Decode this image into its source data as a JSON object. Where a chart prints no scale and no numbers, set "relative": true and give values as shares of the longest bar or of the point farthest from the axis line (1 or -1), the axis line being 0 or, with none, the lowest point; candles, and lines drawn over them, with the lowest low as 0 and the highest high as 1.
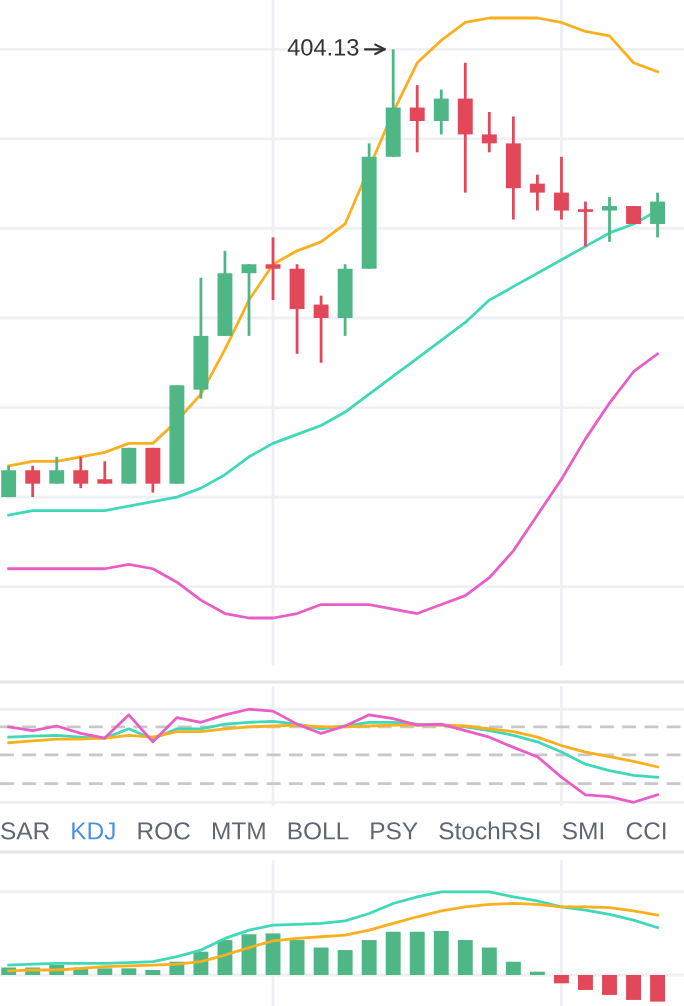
{
  "chart_data": [
    {
      "type": "candlestick",
      "relative": true,
      "grid": true,
      "categories": [
        null,
        null,
        null,
        null,
        null,
        null,
        null,
        null,
        null,
        null,
        null,
        null,
        null,
        null,
        null,
        null,
        null,
        null,
        null,
        null,
        null,
        null,
        null,
        null,
        null,
        null,
        null,
        null
      ],
      "ohlc": [
        [
          0.0,
          0.07,
          0.0,
          0.06
        ],
        [
          0.06,
          0.07,
          0.0,
          0.03
        ],
        [
          0.03,
          0.09,
          0.03,
          0.06
        ],
        [
          0.06,
          0.09,
          0.02,
          0.03
        ],
        [
          0.04,
          0.08,
          0.03,
          0.03
        ],
        [
          0.03,
          0.11,
          0.03,
          0.11
        ],
        [
          0.11,
          0.11,
          0.01,
          0.03
        ],
        [
          0.03,
          0.25,
          0.03,
          0.25
        ],
        [
          0.24,
          0.49,
          0.22,
          0.36
        ],
        [
          0.36,
          0.55,
          0.36,
          0.5
        ],
        [
          0.5,
          0.52,
          0.36,
          0.52
        ],
        [
          0.52,
          0.58,
          0.44,
          0.51
        ],
        [
          0.51,
          0.52,
          0.32,
          0.42
        ],
        [
          0.43,
          0.45,
          0.3,
          0.4
        ],
        [
          0.4,
          0.52,
          0.36,
          0.51
        ],
        [
          0.51,
          0.79,
          0.51,
          0.76
        ],
        [
          0.76,
          1.0,
          0.76,
          0.87
        ],
        [
          0.87,
          0.92,
          0.77,
          0.84
        ],
        [
          0.84,
          0.91,
          0.81,
          0.89
        ],
        [
          0.89,
          0.97,
          0.68,
          0.81
        ],
        [
          0.81,
          0.86,
          0.77,
          0.79
        ],
        [
          0.79,
          0.85,
          0.62,
          0.69
        ],
        [
          0.7,
          0.72,
          0.64,
          0.68
        ],
        [
          0.68,
          0.76,
          0.62,
          0.64
        ],
        [
          0.643,
          0.66,
          0.56,
          0.637
        ],
        [
          0.64,
          0.67,
          0.57,
          0.65
        ],
        [
          0.65,
          0.65,
          0.61,
          0.61
        ],
        [
          0.61,
          0.68,
          0.58,
          0.66
        ]
      ],
      "colors": [
        "#4fb686",
        "#e2485a",
        "#4fb686",
        "#e2485a",
        "#e2485a",
        "#4fb686",
        "#e2485a",
        "#4fb686",
        "#4fb686",
        "#4fb686",
        "#4fb686",
        "#e2485a",
        "#e2485a",
        "#e2485a",
        "#4fb686",
        "#4fb686",
        "#4fb686",
        "#e2485a",
        "#4fb686",
        "#e2485a",
        "#e2485a",
        "#e2485a",
        "#e2485a",
        "#e2485a",
        "#e2485a",
        "#4fb686",
        "#e2485a",
        "#4fb686"
      ],
      "series": [
        {
          "type": "line",
          "color": "#f8b01f",
          "values": [
            0.07,
            0.08,
            0.08,
            0.09,
            0.1,
            0.12,
            0.12,
            0.17,
            0.23,
            0.33,
            0.44,
            0.52,
            0.55,
            0.57,
            0.61,
            null,
            0.86,
            0.97,
            1.02,
            1.06,
            1.07,
            1.07,
            1.07,
            1.06,
            1.04,
            1.03,
            0.97,
            0.95
          ]
        },
        {
          "type": "line",
          "color": "#3fd8b8",
          "values": [
            -0.04,
            -0.03,
            -0.03,
            -0.03,
            -0.03,
            -0.02,
            -0.01,
            0.0,
            0.02,
            0.05,
            0.09,
            0.12,
            0.14,
            0.16,
            0.19,
            0.23,
            0.27,
            0.31,
            0.35,
            0.39,
            0.44,
            0.47,
            0.5,
            0.53,
            0.56,
            0.59,
            0.61,
            0.64
          ]
        },
        {
          "type": "line",
          "color": "#e85ec6",
          "values": [
            -0.16,
            -0.16,
            -0.16,
            -0.16,
            -0.16,
            -0.15,
            -0.16,
            -0.19,
            -0.23,
            -0.26,
            -0.27,
            -0.27,
            -0.26,
            -0.24,
            -0.24,
            -0.24,
            -0.25,
            -0.26,
            -0.24,
            -0.22,
            -0.18,
            -0.12,
            -0.04,
            0.04,
            0.13,
            0.21,
            0.28,
            0.32
          ]
        }
      ],
      "annotations": [
        "404.13"
      ]
    },
    {
      "type": "line",
      "relative": true,
      "grid": true,
      "categories": [
        null,
        null,
        null,
        null,
        null,
        null,
        null,
        null,
        null,
        null,
        null,
        null,
        null,
        null,
        null,
        null,
        null,
        null,
        null,
        null,
        null,
        null,
        null,
        null,
        null,
        null,
        null,
        null
      ],
      "series": [
        {
          "color": "#3fd8b8",
          "values": [
            0.7,
            0.71,
            0.72,
            0.7,
            0.69,
            0.79,
            0.68,
            0.79,
            0.79,
            0.84,
            0.86,
            0.87,
            0.84,
            0.79,
            0.82,
            0.86,
            0.86,
            0.84,
            0.83,
            0.81,
            0.77,
            0.72,
            0.65,
            0.54,
            0.41,
            0.34,
            0.29,
            0.27
          ]
        },
        {
          "color": "#f8b01f",
          "values": [
            0.64,
            0.66,
            0.68,
            0.68,
            0.69,
            0.72,
            0.7,
            0.76,
            0.76,
            0.79,
            0.81,
            0.82,
            0.83,
            0.81,
            0.81,
            0.82,
            0.83,
            0.83,
            0.83,
            0.82,
            0.79,
            0.76,
            0.7,
            0.61,
            0.54,
            0.49,
            0.44,
            0.38
          ]
        },
        {
          "color": "#e85ec6",
          "values": [
            0.81,
            0.77,
            0.82,
            0.74,
            0.69,
            0.94,
            0.65,
            0.91,
            0.86,
            0.94,
            1.0,
            0.98,
            0.84,
            0.74,
            0.82,
            0.94,
            0.9,
            0.83,
            0.84,
            0.77,
            0.7,
            0.59,
            0.49,
            0.27,
            0.08,
            0.06,
            0.0,
            0.08
          ]
        }
      ],
      "ref_lines": [
        {
          "axis": "y",
          "value": 0.81,
          "color": "#c8c8c8",
          "line_style": "dashed"
        },
        {
          "axis": "y",
          "value": 0.51,
          "color": "#c8c8c8",
          "line_style": "dashed"
        },
        {
          "axis": "y",
          "value": 0.2,
          "color": "#c8c8c8",
          "line_style": "dashed"
        }
      ]
    },
    {
      "type": "other",
      "annotations": [
        "SAR",
        "KDJ",
        "ROC",
        "MTM",
        "BOLL",
        "PSY",
        "StochRSI",
        "SMI",
        "CCI"
      ],
      "colors": [
        "#5f6673",
        "#4a90e2",
        "#5f6673",
        "#5f6673",
        "#5f6673",
        "#5f6673",
        "#5f6673",
        "#5f6673",
        "#5f6673"
      ]
    },
    {
      "type": "bar",
      "relative": true,
      "grid": true,
      "categories": [
        null,
        null,
        null,
        null,
        null,
        null,
        null,
        null,
        null,
        null,
        null,
        null,
        null,
        null,
        null,
        null,
        null,
        null,
        null,
        null,
        null,
        null,
        null,
        null,
        null,
        null,
        null,
        null
      ],
      "series": [
        {
          "type": "bar",
          "colors": [
            "#4fb686",
            "#4fb686",
            "#4fb686",
            "#4fb686",
            "#4fb686",
            "#4fb686",
            "#4fb686",
            "#4fb686",
            "#4fb686",
            "#4fb686",
            "#4fb686",
            "#4fb686",
            "#4fb686",
            "#4fb686",
            "#4fb686",
            "#4fb686",
            "#4fb686",
            "#4fb686",
            "#4fb686",
            "#4fb686",
            "#4fb686",
            "#4fb686",
            "#4fb686",
            "#e2485a",
            "#e2485a",
            "#e2485a",
            "#e2485a",
            "#e2485a"
          ],
          "values": [
            0.09,
            0.09,
            0.12,
            0.09,
            0.08,
            0.08,
            0.06,
            0.16,
            0.28,
            0.42,
            0.49,
            0.5,
            0.42,
            0.33,
            0.3,
            0.42,
            0.52,
            0.52,
            0.53,
            0.42,
            0.33,
            0.16,
            0.04,
            -0.1,
            -0.18,
            -0.24,
            -0.3,
            -0.32
          ]
        },
        {
          "type": "line",
          "color": "#3fd8b8",
          "values": [
            0.12,
            0.13,
            0.14,
            0.14,
            0.14,
            0.15,
            0.16,
            0.22,
            0.3,
            0.44,
            0.54,
            0.6,
            0.61,
            0.62,
            0.65,
            0.74,
            0.86,
            0.94,
            1.0,
            1.0,
            1.0,
            0.94,
            0.89,
            0.82,
            0.78,
            0.73,
            0.66,
            0.57
          ]
        },
        {
          "type": "line",
          "color": "#f8b01f",
          "values": [
            0.05,
            0.06,
            0.06,
            0.08,
            0.1,
            0.11,
            0.12,
            0.13,
            0.16,
            0.24,
            0.33,
            0.41,
            0.44,
            0.46,
            0.48,
            0.54,
            0.62,
            0.7,
            0.77,
            0.82,
            0.85,
            0.86,
            0.85,
            0.82,
            0.82,
            0.81,
            0.77,
            0.72
          ]
        }
      ]
    }
  ]
}
